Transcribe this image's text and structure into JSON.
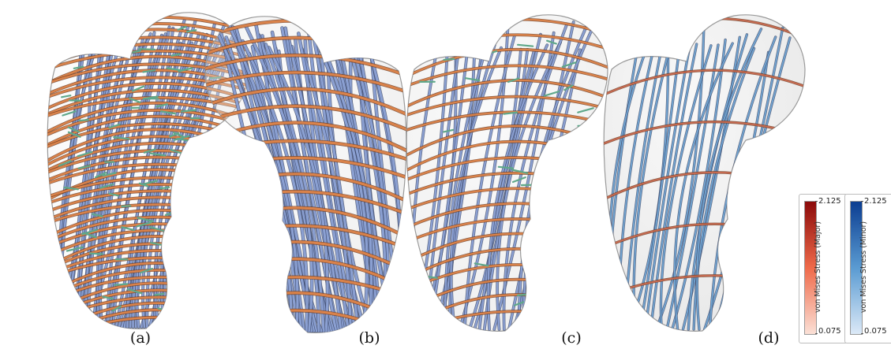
{
  "panels": [
    {
      "label": "(a)",
      "style": "dense-network",
      "major_color": "#d9824a",
      "minor_color": "#8a9fd1",
      "medium_color": "#5fa88a"
    },
    {
      "label": "(b)",
      "style": "head-view",
      "major_color": "#d9824a",
      "minor_color": "#8a9fd1"
    },
    {
      "label": "(c)",
      "style": "sparse-network",
      "major_color": "#d9824a",
      "minor_color": "#8a9fd1",
      "medium_color": "#5fa88a"
    },
    {
      "label": "(d)",
      "style": "colormapped",
      "major_color": "#c86a50",
      "minor_color": "#6fa2cf"
    }
  ],
  "legend": {
    "major": {
      "title": "von Mises Stress (Major)",
      "max": "2.125",
      "min": "0.075",
      "color_high": "#8b0a0a",
      "color_low": "#fbe0d6"
    },
    "minor": {
      "title": "von Mises Stress (Minor)",
      "max": "2.125",
      "min": "0.075",
      "color_high": "#0b3d91",
      "color_low": "#dce9f7"
    }
  }
}
